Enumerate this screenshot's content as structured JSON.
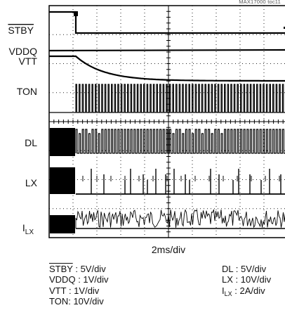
{
  "figure_id": "MAX17000 toc11",
  "chart_data": {
    "type": "oscilloscope",
    "timebase": "2ms/div",
    "grid": true,
    "divisions": {
      "x": 10,
      "y": 8
    },
    "channels": [
      {
        "key": "stby",
        "label": "STBY",
        "label_overline": true,
        "scale": ": 5V/div",
        "behavior": "high then falls to low at start"
      },
      {
        "key": "vddq",
        "label": "VDDQ",
        "scale": ": 1V/div",
        "behavior": "flat high"
      },
      {
        "key": "vtt",
        "label": "VTT",
        "scale": ": 1V/div",
        "behavior": "exponential decay after STBY falls"
      },
      {
        "key": "ton",
        "label": "TON",
        "scale": ": 10V/div",
        "behavior": "low then dense switching"
      },
      {
        "key": "dl",
        "label": "DL",
        "scale": ": 5V/div",
        "behavior": "switching pulses"
      },
      {
        "key": "lx",
        "label": "LX",
        "scale": ": 10V/div",
        "behavior": "sparse pulses"
      },
      {
        "key": "ilx",
        "label": "I",
        "label_sub": "LX",
        "scale": ": 2A/div",
        "behavior": "noisy current ripple"
      }
    ]
  }
}
